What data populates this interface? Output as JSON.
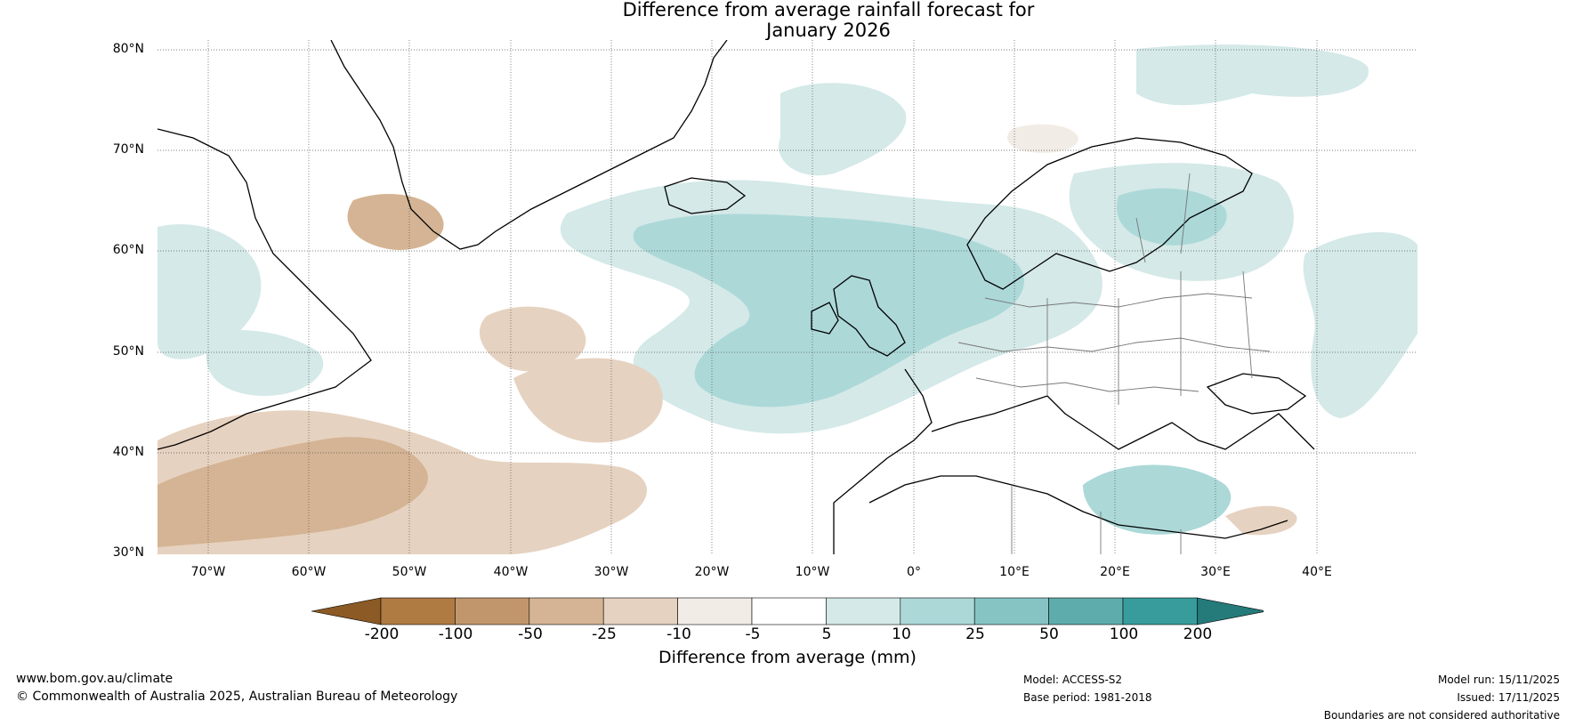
{
  "title": {
    "line1": "Difference from average rainfall forecast for",
    "line2": "January 2026"
  },
  "map": {
    "lat_labels": [
      "80°N",
      "70°N",
      "60°N",
      "50°N",
      "40°N",
      "30°N"
    ],
    "lon_labels": [
      "70°W",
      "60°W",
      "50°W",
      "40°W",
      "30°W",
      "20°W",
      "10°W",
      "0°",
      "10°E",
      "20°E",
      "30°E",
      "40°E"
    ],
    "extent": {
      "lon_min": -75,
      "lon_max": 50,
      "lat_min": 30,
      "lat_max": 81
    }
  },
  "colorbar": {
    "title": "Difference from average (mm)",
    "tick_labels": [
      "-200",
      "-100",
      "-50",
      "-25",
      "-10",
      "-5",
      "5",
      "10",
      "25",
      "50",
      "100",
      "200"
    ],
    "colors": [
      "#8c5a24",
      "#b07a43",
      "#c2966c",
      "#d4b494",
      "#e6d2c0",
      "#f2ece6",
      "#ffffff",
      "#d4e9e8",
      "#acd8d8",
      "#86c4c4",
      "#5eacac",
      "#389c9c",
      "#257a7a"
    ]
  },
  "footer": {
    "website": "www.bom.gov.au/climate",
    "copyright": "© Commonwealth of Australia 2025, Australian Bureau of Meteorology",
    "model": "Model: ACCESS-S2",
    "base_period": "Base period: 1981-2018",
    "model_run": "Model run: 15/11/2025",
    "issued": "Issued: 17/11/2025",
    "disclaimer": "Boundaries are not considered authoritative"
  }
}
